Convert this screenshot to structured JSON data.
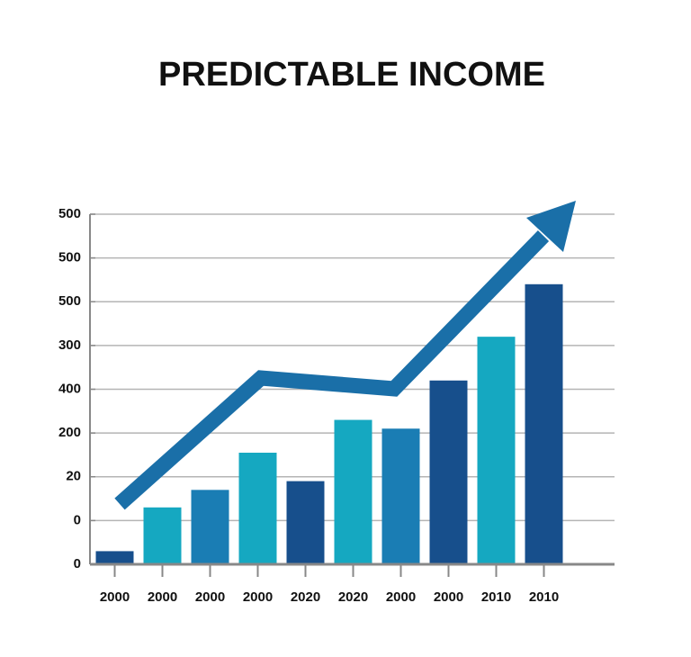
{
  "chart_data": {
    "type": "bar",
    "title": "PREDICTABLE INCOME",
    "categories": [
      "2000",
      "2000",
      "2000",
      "2000",
      "2020",
      "2020",
      "2000",
      "2000",
      "2010",
      "2010"
    ],
    "values": [
      0.3,
      1.3,
      1.7,
      2.55,
      1.9,
      3.3,
      3.1,
      4.2,
      5.2,
      6.4
    ],
    "colors": [
      "#174f8c",
      "#15a8c1",
      "#1a7db4",
      "#15a8c1",
      "#174f8c",
      "#15a8c1",
      "#1a7db4",
      "#174f8c",
      "#15a8c1",
      "#174f8c"
    ],
    "ylim": [
      0,
      8
    ],
    "yticks": [
      {
        "value": 0,
        "label": "0"
      },
      {
        "value": 1,
        "label": "0"
      },
      {
        "value": 2,
        "label": "20"
      },
      {
        "value": 3,
        "label": "200"
      },
      {
        "value": 4,
        "label": "400"
      },
      {
        "value": 5,
        "label": "300"
      },
      {
        "value": 6,
        "label": "500"
      },
      {
        "value": 7,
        "label": "500"
      },
      {
        "value": 8,
        "label": "500"
      }
    ],
    "grid": true
  }
}
